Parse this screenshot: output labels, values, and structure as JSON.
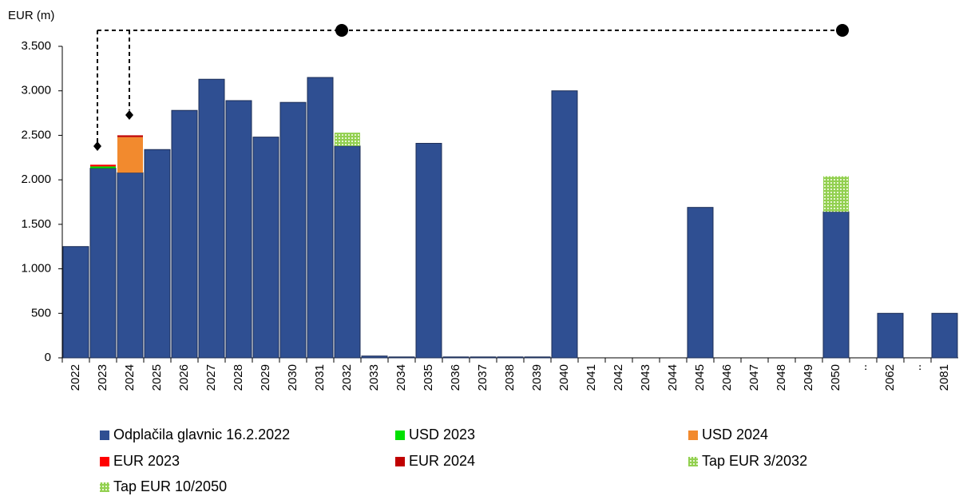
{
  "chart_data": {
    "type": "bar",
    "stacked": true,
    "y_axis_label": "EUR (m)",
    "categories": [
      "2022",
      "2023",
      "2024",
      "2025",
      "2026",
      "2027",
      "2028",
      "2029",
      "2030",
      "2031",
      "2032",
      "2033",
      "2034",
      "2035",
      "2036",
      "2037",
      "2038",
      "2039",
      "2040",
      "2041",
      "2042",
      "2043",
      "2044",
      "2045",
      "2046",
      "2047",
      "2048",
      "2049",
      "2050",
      "..",
      "2062",
      "..",
      "2081"
    ],
    "series": [
      {
        "name": "Odplačila glavnic 16.2.2022",
        "color": "#2f4f92",
        "values": [
          1250,
          2130,
          2080,
          2340,
          2780,
          3130,
          2890,
          2480,
          2870,
          3150,
          2380,
          20,
          10,
          2410,
          10,
          10,
          10,
          10,
          3000,
          0,
          0,
          0,
          0,
          1690,
          0,
          0,
          0,
          0,
          1640,
          null,
          500,
          null,
          500
        ]
      },
      {
        "name": "USD 2023",
        "color": "#00e000",
        "values": [
          0,
          20,
          0,
          0,
          0,
          0,
          0,
          0,
          0,
          0,
          0,
          0,
          0,
          0,
          0,
          0,
          0,
          0,
          0,
          0,
          0,
          0,
          0,
          0,
          0,
          0,
          0,
          0,
          0,
          null,
          0,
          null,
          0
        ]
      },
      {
        "name": "USD 2024",
        "color": "#f28a2e",
        "values": [
          0,
          0,
          400,
          0,
          0,
          0,
          0,
          0,
          0,
          0,
          0,
          0,
          0,
          0,
          0,
          0,
          0,
          0,
          0,
          0,
          0,
          0,
          0,
          0,
          0,
          0,
          0,
          0,
          0,
          null,
          0,
          null,
          0
        ]
      },
      {
        "name": "EUR 2023",
        "color": "#ff0000",
        "values": [
          0,
          20,
          0,
          0,
          0,
          0,
          0,
          0,
          0,
          0,
          0,
          0,
          0,
          0,
          0,
          0,
          0,
          0,
          0,
          0,
          0,
          0,
          0,
          0,
          0,
          0,
          0,
          0,
          0,
          null,
          0,
          null,
          0
        ]
      },
      {
        "name": "EUR 2024",
        "color": "#c00000",
        "values": [
          0,
          0,
          20,
          0,
          0,
          0,
          0,
          0,
          0,
          0,
          0,
          0,
          0,
          0,
          0,
          0,
          0,
          0,
          0,
          0,
          0,
          0,
          0,
          0,
          0,
          0,
          0,
          0,
          0,
          null,
          0,
          null,
          0
        ]
      },
      {
        "name": "Tap EUR 3/2032",
        "color": "#92d050",
        "pattern": "dots",
        "values": [
          0,
          0,
          0,
          0,
          0,
          0,
          0,
          0,
          0,
          0,
          150,
          0,
          0,
          0,
          0,
          0,
          0,
          0,
          0,
          0,
          0,
          0,
          0,
          0,
          0,
          0,
          0,
          0,
          0,
          null,
          0,
          null,
          0
        ]
      },
      {
        "name": "Tap EUR 10/2050",
        "color": "#92d050",
        "pattern": "dots",
        "values": [
          0,
          0,
          0,
          0,
          0,
          0,
          0,
          0,
          0,
          0,
          0,
          0,
          0,
          0,
          0,
          0,
          0,
          0,
          0,
          0,
          0,
          0,
          0,
          0,
          0,
          0,
          0,
          0,
          400,
          null,
          0,
          null,
          0
        ]
      }
    ],
    "ylim": [
      0,
      3500
    ],
    "yticks": [
      0,
      500,
      {
        "value": 1000,
        "label": "1.000"
      },
      {
        "value": 1500,
        "label": "1.500"
      },
      {
        "value": 2000,
        "label": "2.000"
      },
      {
        "value": 2500,
        "label": "2.500"
      },
      {
        "value": 3000,
        "label": "3.000"
      },
      {
        "value": 3500,
        "label": "3.500"
      }
    ],
    "grid": false
  }
}
